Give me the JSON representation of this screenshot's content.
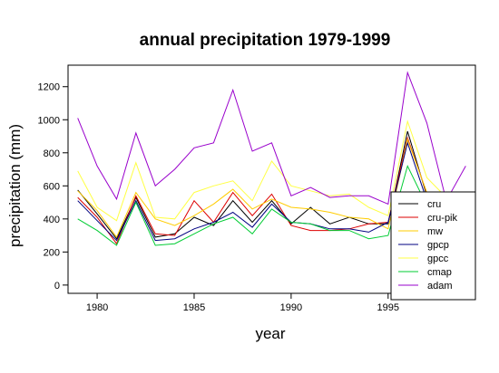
{
  "chart_data": {
    "type": "line",
    "title": "annual precipitation 1979-1999",
    "xlabel": "year",
    "ylabel": "precipitation (mm)",
    "xlim": [
      1978.5,
      1999.5
    ],
    "ylim": [
      -50,
      1330
    ],
    "xticks": [
      1980,
      1985,
      1990,
      1995
    ],
    "yticks": [
      0,
      200,
      400,
      600,
      800,
      1000,
      1200
    ],
    "legend_position": "bottom-right",
    "grid": false,
    "series": [
      {
        "name": "cru",
        "color": "#000000",
        "x": [
          1979,
          1980,
          1981,
          1982,
          1983,
          1984,
          1985,
          1986,
          1987,
          1988,
          1989,
          1990,
          1991,
          1992,
          1993,
          1994,
          1995,
          1996,
          1997
        ],
        "y": [
          575,
          430,
          280,
          530,
          290,
          310,
          410,
          360,
          510,
          380,
          510,
          370,
          470,
          370,
          410,
          370,
          370,
          930,
          540
        ]
      },
      {
        "name": "cru-pik",
        "color": "#dd0000",
        "x": [
          1979,
          1980,
          1981,
          1982,
          1983,
          1984,
          1985,
          1986,
          1987,
          1988,
          1989,
          1990,
          1991,
          1992,
          1993,
          1994,
          1995,
          1996,
          1997
        ],
        "y": [
          530,
          410,
          250,
          540,
          310,
          300,
          510,
          380,
          560,
          420,
          550,
          360,
          330,
          330,
          340,
          370,
          380,
          890,
          555
        ]
      },
      {
        "name": "mw",
        "color": "#ffcc00",
        "x": [
          1979,
          1980,
          1981,
          1982,
          1983,
          1984,
          1985,
          1986,
          1987,
          1988,
          1989,
          1990,
          1991,
          1992,
          1993,
          1994,
          1995,
          1996,
          1997
        ],
        "y": [
          570,
          450,
          290,
          560,
          400,
          360,
          420,
          490,
          580,
          460,
          520,
          470,
          460,
          440,
          410,
          400,
          340,
          880,
          560
        ]
      },
      {
        "name": "gpcp",
        "color": "#000080",
        "x": [
          1979,
          1980,
          1981,
          1982,
          1983,
          1984,
          1985,
          1986,
          1987,
          1988,
          1989,
          1990,
          1991,
          1992,
          1993,
          1994,
          1995,
          1996,
          1997
        ],
        "y": [
          510,
          390,
          270,
          510,
          270,
          280,
          340,
          380,
          440,
          350,
          490,
          380,
          370,
          340,
          340,
          320,
          380,
          860,
          510
        ]
      },
      {
        "name": "gpcc",
        "color": "#ffff44",
        "x": [
          1979,
          1980,
          1981,
          1982,
          1983,
          1984,
          1985,
          1986,
          1987,
          1988,
          1989,
          1990,
          1991,
          1992,
          1993,
          1994,
          1995,
          1996,
          1997,
          1998
        ],
        "y": [
          690,
          470,
          390,
          740,
          410,
          400,
          560,
          600,
          630,
          510,
          750,
          600,
          570,
          540,
          550,
          470,
          420,
          990,
          650,
          530
        ]
      },
      {
        "name": "cmap",
        "color": "#00cc33",
        "x": [
          1979,
          1980,
          1981,
          1982,
          1983,
          1984,
          1985,
          1986,
          1987,
          1988,
          1989,
          1990,
          1991,
          1992,
          1993,
          1994,
          1995,
          1996,
          1997
        ],
        "y": [
          400,
          330,
          240,
          500,
          240,
          250,
          310,
          370,
          410,
          310,
          460,
          380,
          370,
          330,
          330,
          280,
          300,
          720,
          480
        ]
      },
      {
        "name": "adam",
        "color": "#9900cc",
        "x": [
          1979,
          1980,
          1981,
          1982,
          1983,
          1984,
          1985,
          1986,
          1987,
          1988,
          1989,
          1990,
          1991,
          1992,
          1993,
          1994,
          1995,
          1996,
          1997,
          1998,
          1999
        ],
        "y": [
          1010,
          720,
          520,
          920,
          600,
          700,
          830,
          860,
          1180,
          810,
          860,
          540,
          590,
          530,
          540,
          540,
          490,
          1285,
          980,
          510,
          720
        ]
      }
    ]
  }
}
